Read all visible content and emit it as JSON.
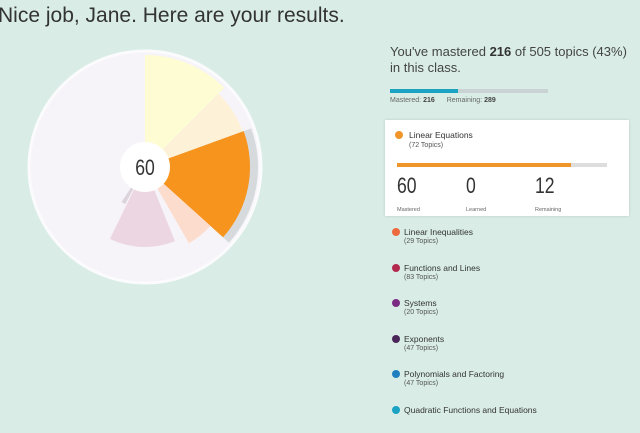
{
  "header": {
    "title": "Nice job, Jane. Here are your results."
  },
  "chart": {
    "center_value": "60"
  },
  "summary": {
    "prefix": "You've mastered ",
    "mastered": "216",
    "middle": " of 505 topics (43%) in this class.",
    "progress_fraction": 0.43,
    "mastered_label": "Mastered:",
    "mastered_value": "216",
    "remaining_label": "Remaining:",
    "remaining_value": "289",
    "bar_color": "#1ba3c4"
  },
  "selected": {
    "name": "Linear Equations",
    "count": "(72 Topics)",
    "color": "#f0952a",
    "progress_fraction": 0.83,
    "stats": [
      {
        "value": "60",
        "label": "Mastered"
      },
      {
        "value": "0",
        "label": "Learned"
      },
      {
        "value": "12",
        "label": "Remaining"
      }
    ]
  },
  "topics": [
    {
      "name": "Linear Inequalities",
      "count": "(29 Topics)",
      "color": "#ec6a3e"
    },
    {
      "name": "Functions and Lines",
      "count": "(83 Topics)",
      "color": "#b3294e"
    },
    {
      "name": "Systems",
      "count": "(20 Topics)",
      "color": "#7b2c82"
    },
    {
      "name": "Exponents",
      "count": "(47 Topics)",
      "color": "#4a2758"
    },
    {
      "name": "Polynomials and Factoring",
      "count": "(47 Topics)",
      "color": "#1f7fbf"
    },
    {
      "name": "Quadratic Functions and Equations",
      "count": "",
      "color": "#1ba3c4"
    }
  ]
}
